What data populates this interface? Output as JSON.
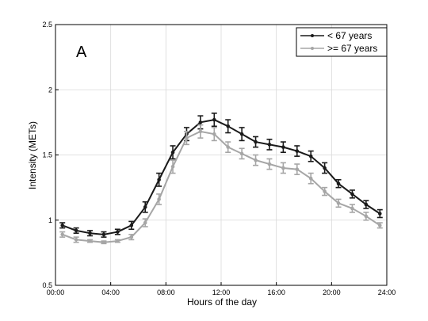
{
  "chart_data": {
    "type": "line",
    "panel_label": "A",
    "xlabel": "Hours of the day",
    "ylabel": "Intensity (METs)",
    "xlim": [
      0,
      24
    ],
    "ylim": [
      0.5,
      2.5
    ],
    "x_ticks": [
      {
        "value": 0,
        "label": "00:00"
      },
      {
        "value": 4,
        "label": "04:00"
      },
      {
        "value": 8,
        "label": "08:00"
      },
      {
        "value": 12,
        "label": "12:00"
      },
      {
        "value": 16,
        "label": "16:00"
      },
      {
        "value": 20,
        "label": "20:00"
      },
      {
        "value": 24,
        "label": "24:00"
      }
    ],
    "y_ticks": [
      {
        "value": 0.5,
        "label": "0.5"
      },
      {
        "value": 1.0,
        "label": "1"
      },
      {
        "value": 1.5,
        "label": "1.5"
      },
      {
        "value": 2.0,
        "label": "2"
      },
      {
        "value": 2.5,
        "label": "2.5"
      }
    ],
    "grid": true,
    "legend_position": "top-right",
    "x": [
      0.5,
      1.5,
      2.5,
      3.5,
      4.5,
      5.5,
      6.5,
      7.5,
      8.5,
      9.5,
      10.5,
      11.5,
      12.5,
      13.5,
      14.5,
      15.5,
      16.5,
      17.5,
      18.5,
      19.5,
      20.5,
      21.5,
      22.5,
      23.5
    ],
    "series": [
      {
        "name": "< 67 years",
        "color": "#1a1a1a",
        "values": [
          0.96,
          0.92,
          0.9,
          0.89,
          0.91,
          0.96,
          1.1,
          1.31,
          1.52,
          1.66,
          1.75,
          1.77,
          1.72,
          1.66,
          1.6,
          1.58,
          1.56,
          1.53,
          1.49,
          1.4,
          1.28,
          1.2,
          1.12,
          1.05
        ],
        "errors": [
          0.02,
          0.02,
          0.02,
          0.02,
          0.02,
          0.03,
          0.04,
          0.05,
          0.05,
          0.05,
          0.05,
          0.05,
          0.05,
          0.05,
          0.04,
          0.04,
          0.04,
          0.04,
          0.04,
          0.04,
          0.03,
          0.03,
          0.03,
          0.03
        ]
      },
      {
        "name": ">= 67 years",
        "color": "#a6a6a6",
        "values": [
          0.89,
          0.85,
          0.84,
          0.83,
          0.84,
          0.87,
          0.98,
          1.16,
          1.41,
          1.63,
          1.68,
          1.66,
          1.56,
          1.51,
          1.46,
          1.43,
          1.4,
          1.39,
          1.32,
          1.22,
          1.13,
          1.09,
          1.03,
          0.96
        ],
        "errors": [
          0.02,
          0.02,
          0.01,
          0.01,
          0.01,
          0.02,
          0.03,
          0.04,
          0.05,
          0.05,
          0.05,
          0.05,
          0.04,
          0.04,
          0.04,
          0.04,
          0.04,
          0.04,
          0.04,
          0.03,
          0.03,
          0.03,
          0.03,
          0.02
        ]
      }
    ]
  }
}
